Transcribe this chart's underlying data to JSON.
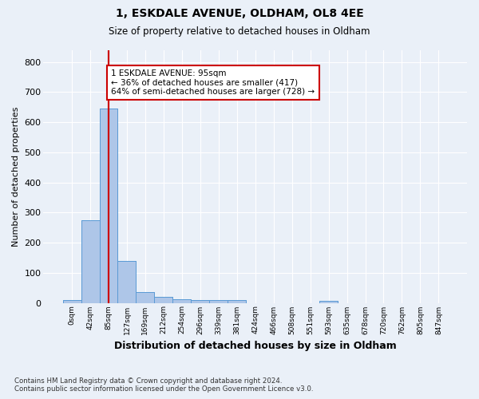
{
  "title_line1": "1, ESKDALE AVENUE, OLDHAM, OL8 4EE",
  "title_line2": "Size of property relative to detached houses in Oldham",
  "xlabel": "Distribution of detached houses by size in Oldham",
  "ylabel": "Number of detached properties",
  "footnote": "Contains HM Land Registry data © Crown copyright and database right 2024.\nContains public sector information licensed under the Open Government Licence v3.0.",
  "bar_labels": [
    "0sqm",
    "42sqm",
    "85sqm",
    "127sqm",
    "169sqm",
    "212sqm",
    "254sqm",
    "296sqm",
    "339sqm",
    "381sqm",
    "424sqm",
    "466sqm",
    "508sqm",
    "551sqm",
    "593sqm",
    "635sqm",
    "678sqm",
    "720sqm",
    "762sqm",
    "805sqm",
    "847sqm"
  ],
  "bar_values": [
    9,
    275,
    645,
    138,
    35,
    20,
    13,
    10,
    10,
    9,
    0,
    0,
    0,
    0,
    7,
    0,
    0,
    0,
    0,
    0,
    0
  ],
  "bar_color": "#aec6e8",
  "bar_edge_color": "#5b9bd5",
  "background_color": "#eaf0f8",
  "grid_color": "#ffffff",
  "vline_x": 2,
  "vline_color": "#cc0000",
  "annotation_text": "1 ESKDALE AVENUE: 95sqm\n← 36% of detached houses are smaller (417)\n64% of semi-detached houses are larger (728) →",
  "annotation_box_color": "#ffffff",
  "annotation_box_edge": "#cc0000",
  "ylim": [
    0,
    840
  ],
  "yticks": [
    0,
    100,
    200,
    300,
    400,
    500,
    600,
    700,
    800
  ]
}
